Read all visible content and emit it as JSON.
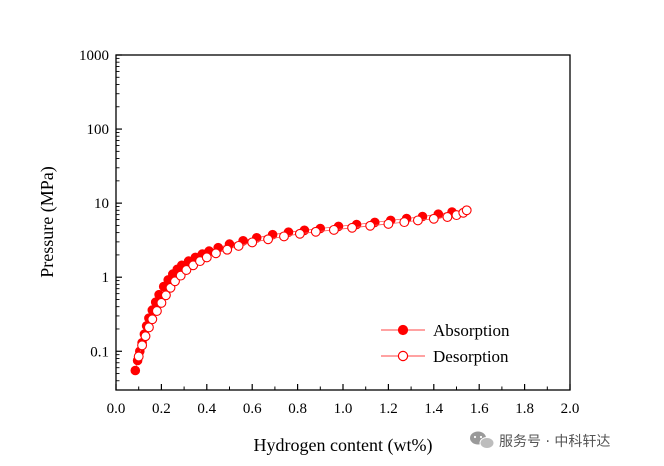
{
  "chart_data": {
    "type": "scatter",
    "title": "",
    "xlabel": "Hydrogen content (wt%)",
    "ylabel": "Pressure (MPa)",
    "xlim": [
      0.0,
      2.0
    ],
    "ylim": [
      0.03,
      1000
    ],
    "yscale": "log",
    "grid": false,
    "legend_position": "bottom-right",
    "x_ticks": [
      "0.0",
      "0.2",
      "0.4",
      "0.6",
      "0.8",
      "1.0",
      "1.2",
      "1.4",
      "1.6",
      "1.8",
      "2.0"
    ],
    "x_tick_values": [
      0.0,
      0.2,
      0.4,
      0.6,
      0.8,
      1.0,
      1.2,
      1.4,
      1.6,
      1.8,
      2.0
    ],
    "y_ticks": [
      "0.1",
      "1",
      "10",
      "100",
      "1000"
    ],
    "y_tick_values": [
      0.1,
      1,
      10,
      100,
      1000
    ],
    "series": [
      {
        "name": "Absorption",
        "marker": "filled-circle",
        "color": "#ff0000",
        "x": [
          0.085,
          0.095,
          0.105,
          0.115,
          0.125,
          0.135,
          0.145,
          0.16,
          0.175,
          0.19,
          0.21,
          0.23,
          0.25,
          0.27,
          0.29,
          0.32,
          0.35,
          0.38,
          0.41,
          0.45,
          0.5,
          0.56,
          0.62,
          0.69,
          0.76,
          0.83,
          0.9,
          0.98,
          1.06,
          1.14,
          1.21,
          1.28,
          1.35,
          1.42,
          1.48
        ],
        "y": [
          0.055,
          0.075,
          0.1,
          0.13,
          0.17,
          0.22,
          0.28,
          0.36,
          0.46,
          0.58,
          0.75,
          0.92,
          1.1,
          1.28,
          1.45,
          1.65,
          1.85,
          2.05,
          2.25,
          2.5,
          2.8,
          3.1,
          3.4,
          3.75,
          4.05,
          4.3,
          4.55,
          4.85,
          5.15,
          5.5,
          5.85,
          6.2,
          6.6,
          7.1,
          7.6
        ]
      },
      {
        "name": "Desorption",
        "marker": "open-circle",
        "color": "#ff0000",
        "x": [
          0.1,
          0.115,
          0.13,
          0.145,
          0.16,
          0.18,
          0.2,
          0.22,
          0.24,
          0.26,
          0.285,
          0.31,
          0.34,
          0.37,
          0.4,
          0.44,
          0.49,
          0.54,
          0.6,
          0.67,
          0.74,
          0.81,
          0.88,
          0.96,
          1.04,
          1.12,
          1.2,
          1.27,
          1.33,
          1.4,
          1.46,
          1.5,
          1.53,
          1.545
        ],
        "y": [
          0.085,
          0.12,
          0.16,
          0.21,
          0.27,
          0.35,
          0.45,
          0.57,
          0.72,
          0.88,
          1.05,
          1.25,
          1.45,
          1.65,
          1.85,
          2.1,
          2.35,
          2.65,
          2.95,
          3.25,
          3.55,
          3.85,
          4.1,
          4.35,
          4.65,
          4.95,
          5.25,
          5.55,
          5.85,
          6.15,
          6.5,
          6.9,
          7.4,
          8.0
        ]
      }
    ]
  },
  "watermark": {
    "text": "服务号 · 中科轩达",
    "icon": "chat-bubbles-icon"
  }
}
